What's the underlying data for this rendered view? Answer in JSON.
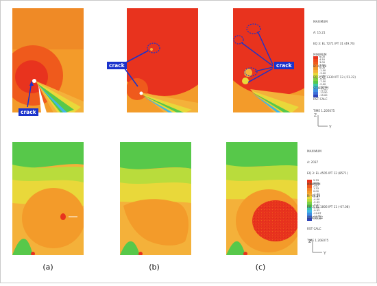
{
  "panel_labels": [
    "(a)",
    "(b)",
    "(c)"
  ],
  "crack_label": "crack",
  "legend_top": {
    "lines": [
      "MAXIMUM",
      "A: 15.21",
      "EQ 3: EL 7271 IPT 31 (49.74)",
      "MINIMUM",
      "B: -62.88",
      "EQ 3: EL 1330 IPT 13 (-51.22)",
      "STRESS YY",
      "RST CALC",
      "TIME 1.20E075"
    ],
    "values": [
      "6.00",
      "4.50",
      "3.00",
      "1.50",
      "0.00",
      "-1.50",
      "-3.00",
      "-4.50",
      "-6.00",
      "-7.50",
      "-9.00",
      "-10.50",
      "-12.00",
      "-13.50",
      "-15.00"
    ]
  },
  "legend_bottom": {
    "lines": [
      "MAXIMUM",
      "A: 2037",
      "EQ 3: EL 4505 IPT 12 (8571)",
      "MINIMUM",
      "B: -86.89",
      "EQ 3: EL 1806 IPT 11 (-67.08)",
      "STRESS ZZ",
      "RST CALC",
      "TIME 1.20E075"
    ],
    "values": [
      "5.33",
      "4.00",
      "2.67",
      "1.33",
      "0.00",
      "-1.33",
      "-2.67",
      "-4.00",
      "-5.33",
      "-6.67",
      "-8.00",
      "-9.33",
      "-10.67",
      "-12.00",
      "-13.33"
    ]
  },
  "axis_labels": {
    "z": "Z",
    "y": "Y"
  },
  "colors": {
    "red": "#e8331e",
    "red_orange": "#ef5a1c",
    "orange": "#f39b2a",
    "light_orange": "#f4b13a",
    "yellow": "#e9d83a",
    "yellow_green": "#b9dc3c",
    "green": "#57c84a",
    "teal": "#3cc6a5",
    "cyan": "#3fb7e4",
    "blue": "#3e6fd8",
    "white": "#ffffff",
    "annotation_blue": "#1a33cc"
  }
}
